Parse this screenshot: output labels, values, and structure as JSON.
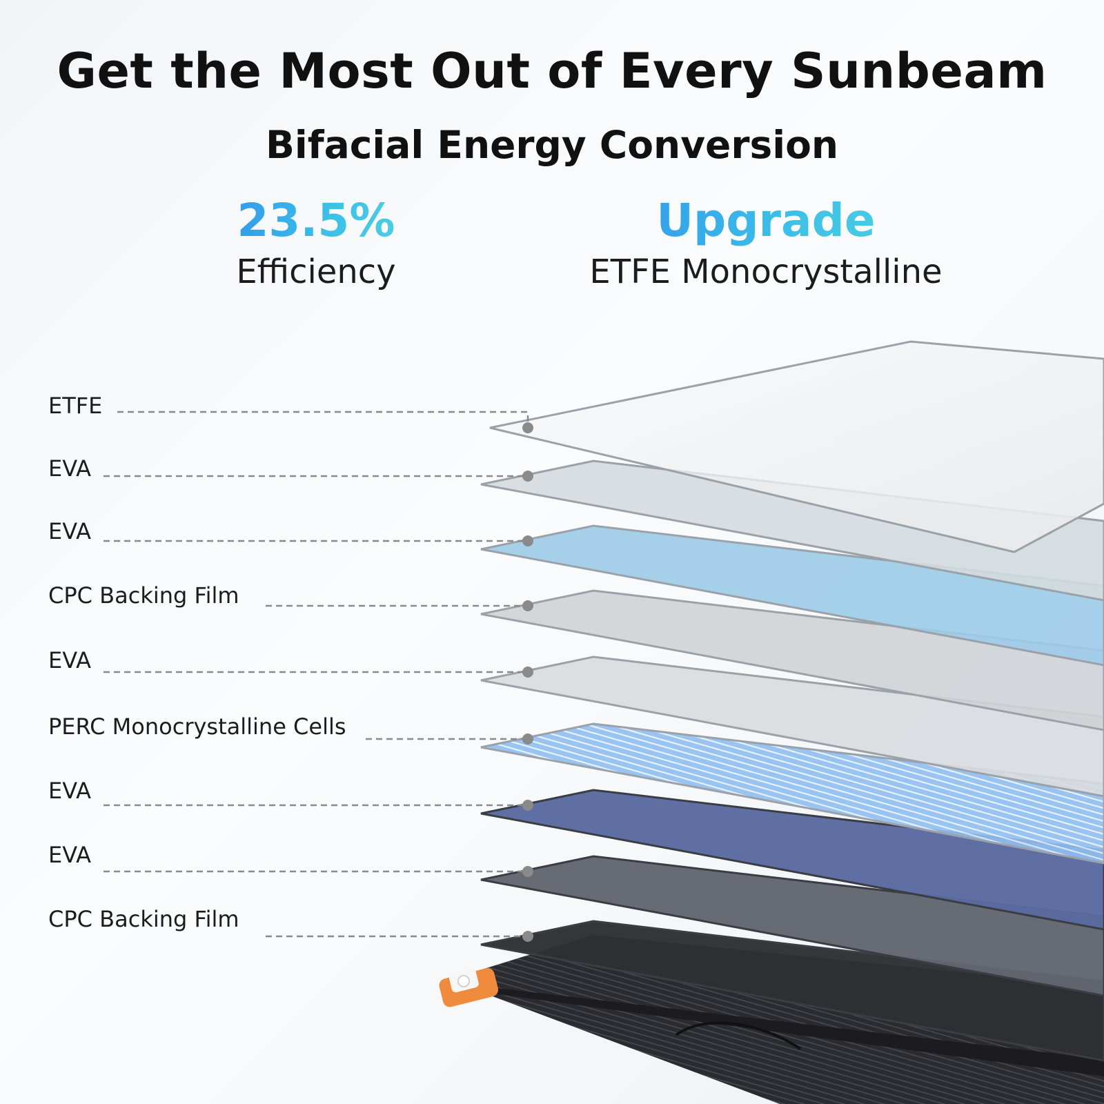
{
  "header": {
    "title": "Get the Most Out of Every Sunbeam",
    "subtitle": "Bifacial Energy Conversion"
  },
  "stats": [
    {
      "value": "23.5%",
      "label": "Efficiency"
    },
    {
      "value": "Upgrade",
      "label": "ETFE Monocrystalline"
    }
  ],
  "colors": {
    "accent_blue": "#2e86ee",
    "accent_cyan": "#5ad8e0",
    "connector": "#8a8a8a",
    "handle_orange": "#f08a3c"
  },
  "layers": [
    {
      "name": "ETFE",
      "fill": "#f2f3f4"
    },
    {
      "name": "EVA",
      "fill": "#d4dade"
    },
    {
      "name": "EVA",
      "fill": "#9ccbe8"
    },
    {
      "name": "CPC Backing Film",
      "fill": "#cfd3d6"
    },
    {
      "name": "EVA",
      "fill": "#d8dcdf"
    },
    {
      "name": "PERC Monocrystalline Cells",
      "fill": "#8fbef0"
    },
    {
      "name": "EVA",
      "fill": "#5a6aa0"
    },
    {
      "name": "EVA",
      "fill": "#62666e"
    },
    {
      "name": "CPC Backing Film",
      "fill": "#2e2f34"
    }
  ]
}
